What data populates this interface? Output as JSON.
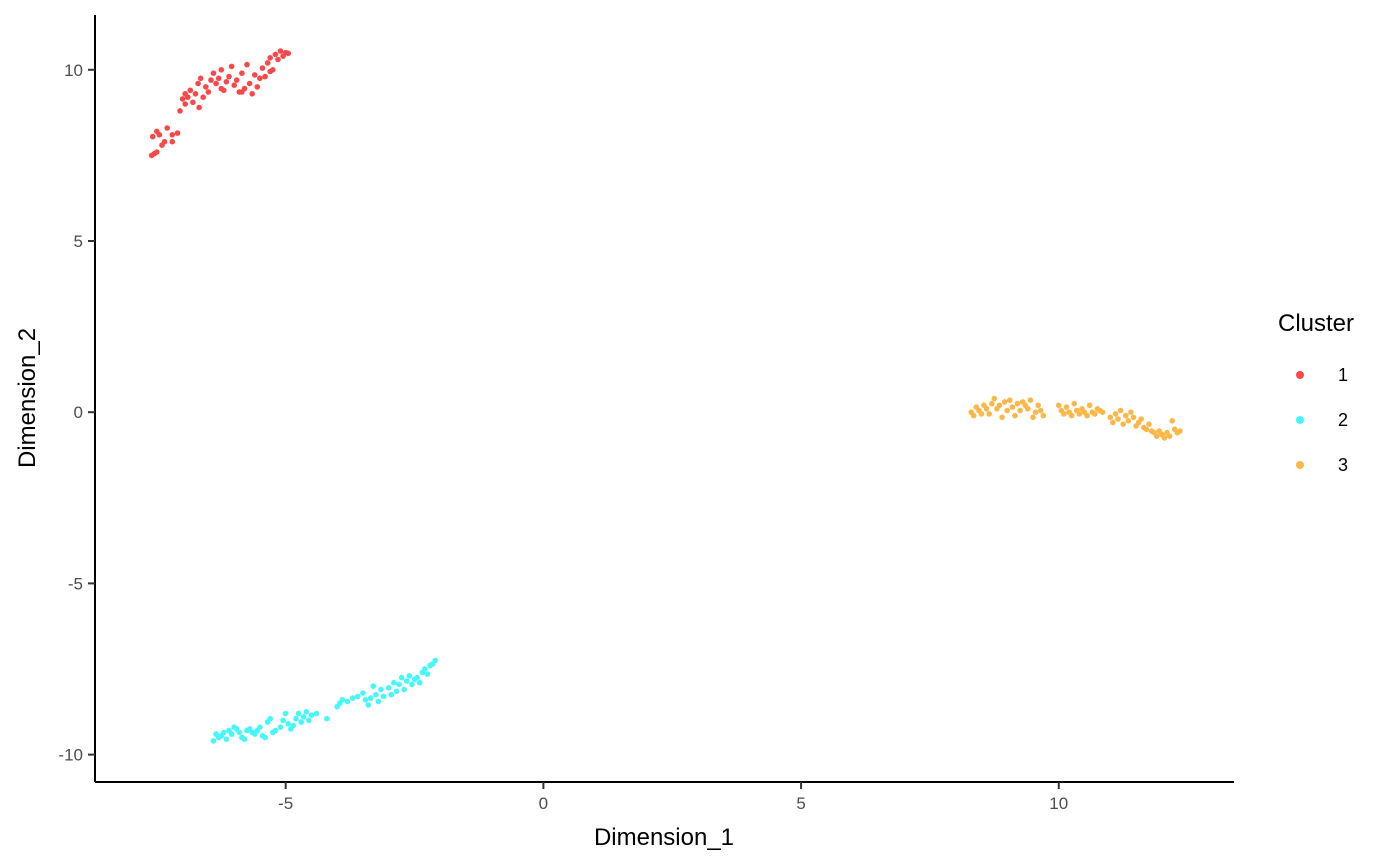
{
  "chart_data": {
    "type": "scatter",
    "xlabel": "Dimension_1",
    "ylabel": "Dimension_2",
    "xlim": [
      -8.7,
      13.4
    ],
    "ylim": [
      -10.8,
      11.6
    ],
    "x_ticks": [
      -5,
      0,
      5,
      10
    ],
    "y_ticks": [
      -10,
      -5,
      0,
      5,
      10
    ],
    "x_tick_labels": [
      "-5",
      "0",
      "5",
      "10"
    ],
    "y_tick_labels": [
      "-10",
      "-5",
      "0",
      "5",
      "10"
    ],
    "grid": false,
    "legend": {
      "title": "Cluster",
      "placement": "right"
    },
    "series": [
      {
        "name": "1",
        "color": "#F8484A",
        "points": [
          [
            -7.6,
            7.5
          ],
          [
            -7.55,
            7.55
          ],
          [
            -7.5,
            7.6
          ],
          [
            -7.58,
            8.05
          ],
          [
            -7.5,
            8.2
          ],
          [
            -7.45,
            8.1
          ],
          [
            -7.4,
            7.8
          ],
          [
            -7.35,
            7.9
          ],
          [
            -7.3,
            8.3
          ],
          [
            -7.2,
            8.1
          ],
          [
            -7.1,
            8.15
          ],
          [
            -7.05,
            8.8
          ],
          [
            -7.0,
            9.15
          ],
          [
            -6.95,
            9.0
          ],
          [
            -6.9,
            9.2
          ],
          [
            -6.85,
            9.4
          ],
          [
            -6.8,
            9.05
          ],
          [
            -6.75,
            9.3
          ],
          [
            -6.7,
            9.6
          ],
          [
            -6.68,
            8.9
          ],
          [
            -6.65,
            9.75
          ],
          [
            -6.6,
            9.2
          ],
          [
            -6.55,
            9.5
          ],
          [
            -6.5,
            9.35
          ],
          [
            -6.45,
            9.7
          ],
          [
            -6.4,
            9.9
          ],
          [
            -6.35,
            9.6
          ],
          [
            -6.3,
            9.75
          ],
          [
            -6.25,
            10.0
          ],
          [
            -6.2,
            9.4
          ],
          [
            -6.15,
            9.65
          ],
          [
            -6.1,
            9.8
          ],
          [
            -6.05,
            10.1
          ],
          [
            -6.0,
            9.55
          ],
          [
            -5.95,
            9.7
          ],
          [
            -5.9,
            9.35
          ],
          [
            -5.85,
            9.9
          ],
          [
            -5.8,
            9.45
          ],
          [
            -5.75,
            10.15
          ],
          [
            -5.7,
            9.6
          ],
          [
            -5.65,
            9.3
          ],
          [
            -5.6,
            9.85
          ],
          [
            -5.55,
            9.5
          ],
          [
            -5.5,
            9.75
          ],
          [
            -5.45,
            10.05
          ],
          [
            -5.4,
            9.8
          ],
          [
            -5.35,
            10.2
          ],
          [
            -5.3,
            10.35
          ],
          [
            -5.25,
            10.0
          ],
          [
            -5.2,
            10.45
          ],
          [
            -5.15,
            10.3
          ],
          [
            -5.1,
            10.55
          ],
          [
            -5.05,
            10.4
          ],
          [
            -5.0,
            10.5
          ],
          [
            -4.95,
            10.48
          ],
          [
            -5.85,
            9.35
          ],
          [
            -6.25,
            9.45
          ],
          [
            -6.95,
            9.3
          ],
          [
            -7.2,
            7.9
          ],
          [
            -5.3,
            9.95
          ]
        ]
      },
      {
        "name": "2",
        "color": "#45F7F8",
        "points": [
          [
            -6.4,
            -9.6
          ],
          [
            -6.35,
            -9.4
          ],
          [
            -6.3,
            -9.5
          ],
          [
            -6.25,
            -9.45
          ],
          [
            -6.2,
            -9.35
          ],
          [
            -6.15,
            -9.55
          ],
          [
            -6.1,
            -9.3
          ],
          [
            -6.05,
            -9.4
          ],
          [
            -6.0,
            -9.2
          ],
          [
            -5.95,
            -9.25
          ],
          [
            -5.9,
            -9.35
          ],
          [
            -5.85,
            -9.5
          ],
          [
            -5.8,
            -9.55
          ],
          [
            -5.75,
            -9.3
          ],
          [
            -5.7,
            -9.25
          ],
          [
            -5.65,
            -9.35
          ],
          [
            -5.6,
            -9.4
          ],
          [
            -5.55,
            -9.3
          ],
          [
            -5.5,
            -9.2
          ],
          [
            -5.45,
            -9.45
          ],
          [
            -5.4,
            -9.5
          ],
          [
            -5.35,
            -9.05
          ],
          [
            -5.3,
            -8.95
          ],
          [
            -5.25,
            -9.35
          ],
          [
            -5.2,
            -9.3
          ],
          [
            -5.1,
            -9.2
          ],
          [
            -5.05,
            -9.0
          ],
          [
            -5.0,
            -8.8
          ],
          [
            -4.95,
            -9.1
          ],
          [
            -4.9,
            -9.25
          ],
          [
            -4.85,
            -9.15
          ],
          [
            -4.8,
            -8.95
          ],
          [
            -4.75,
            -8.8
          ],
          [
            -4.7,
            -9.05
          ],
          [
            -4.65,
            -8.9
          ],
          [
            -4.6,
            -8.75
          ],
          [
            -4.55,
            -9.0
          ],
          [
            -4.5,
            -8.85
          ],
          [
            -4.4,
            -8.8
          ],
          [
            -4.2,
            -8.95
          ],
          [
            -4.0,
            -8.6
          ],
          [
            -3.95,
            -8.5
          ],
          [
            -3.9,
            -8.4
          ],
          [
            -3.8,
            -8.45
          ],
          [
            -3.7,
            -8.35
          ],
          [
            -3.6,
            -8.3
          ],
          [
            -3.5,
            -8.2
          ],
          [
            -3.45,
            -8.4
          ],
          [
            -3.4,
            -8.55
          ],
          [
            -3.35,
            -8.35
          ],
          [
            -3.3,
            -8.0
          ],
          [
            -3.25,
            -8.25
          ],
          [
            -3.2,
            -8.45
          ],
          [
            -3.15,
            -8.1
          ],
          [
            -3.1,
            -8.3
          ],
          [
            -3.0,
            -8.05
          ],
          [
            -2.95,
            -8.25
          ],
          [
            -2.9,
            -7.9
          ],
          [
            -2.85,
            -8.15
          ],
          [
            -2.8,
            -7.95
          ],
          [
            -2.75,
            -7.75
          ],
          [
            -2.7,
            -8.1
          ],
          [
            -2.65,
            -7.85
          ],
          [
            -2.6,
            -7.7
          ],
          [
            -2.55,
            -7.95
          ],
          [
            -2.5,
            -7.8
          ],
          [
            -2.45,
            -7.75
          ],
          [
            -2.4,
            -7.9
          ],
          [
            -2.35,
            -7.6
          ],
          [
            -2.3,
            -7.5
          ],
          [
            -2.25,
            -7.65
          ],
          [
            -2.2,
            -7.4
          ],
          [
            -2.15,
            -7.35
          ],
          [
            -2.1,
            -7.25
          ]
        ]
      },
      {
        "name": "3",
        "color": "#FBB748",
        "points": [
          [
            8.3,
            0.0
          ],
          [
            8.35,
            -0.1
          ],
          [
            8.4,
            0.15
          ],
          [
            8.45,
            0.05
          ],
          [
            8.5,
            -0.05
          ],
          [
            8.55,
            0.2
          ],
          [
            8.6,
            0.1
          ],
          [
            8.65,
            -0.05
          ],
          [
            8.7,
            0.25
          ],
          [
            8.75,
            0.4
          ],
          [
            8.8,
            0.1
          ],
          [
            8.85,
            0.2
          ],
          [
            8.9,
            -0.15
          ],
          [
            8.95,
            0.3
          ],
          [
            9.0,
            0.05
          ],
          [
            9.05,
            0.35
          ],
          [
            9.1,
            0.15
          ],
          [
            9.15,
            -0.1
          ],
          [
            9.2,
            0.25
          ],
          [
            9.25,
            0.05
          ],
          [
            9.3,
            0.3
          ],
          [
            9.35,
            0.2
          ],
          [
            9.4,
            0.1
          ],
          [
            9.45,
            0.35
          ],
          [
            9.5,
            -0.15
          ],
          [
            9.55,
            0.0
          ],
          [
            9.6,
            0.2
          ],
          [
            9.65,
            0.05
          ],
          [
            9.7,
            -0.1
          ],
          [
            10.0,
            0.2
          ],
          [
            10.05,
            0.05
          ],
          [
            10.1,
            -0.05
          ],
          [
            10.15,
            0.15
          ],
          [
            10.2,
            0.0
          ],
          [
            10.25,
            -0.1
          ],
          [
            10.3,
            0.25
          ],
          [
            10.35,
            0.05
          ],
          [
            10.4,
            -0.05
          ],
          [
            10.45,
            0.1
          ],
          [
            10.5,
            0.0
          ],
          [
            10.55,
            -0.1
          ],
          [
            10.6,
            0.2
          ],
          [
            10.65,
            0.0
          ],
          [
            10.7,
            -0.05
          ],
          [
            10.75,
            0.1
          ],
          [
            10.8,
            0.05
          ],
          [
            10.85,
            0.0
          ],
          [
            11.0,
            -0.15
          ],
          [
            11.05,
            -0.3
          ],
          [
            11.1,
            -0.05
          ],
          [
            11.15,
            -0.2
          ],
          [
            11.2,
            0.05
          ],
          [
            11.25,
            -0.35
          ],
          [
            11.3,
            -0.1
          ],
          [
            11.35,
            -0.25
          ],
          [
            11.4,
            0.0
          ],
          [
            11.45,
            -0.15
          ],
          [
            11.5,
            -0.4
          ],
          [
            11.55,
            -0.3
          ],
          [
            11.6,
            -0.2
          ],
          [
            11.65,
            -0.45
          ],
          [
            11.7,
            -0.5
          ],
          [
            11.75,
            -0.35
          ],
          [
            11.8,
            -0.55
          ],
          [
            11.85,
            -0.6
          ],
          [
            11.9,
            -0.7
          ],
          [
            11.95,
            -0.55
          ],
          [
            12.0,
            -0.65
          ],
          [
            12.05,
            -0.75
          ],
          [
            12.1,
            -0.6
          ],
          [
            12.15,
            -0.7
          ],
          [
            12.2,
            -0.25
          ],
          [
            12.25,
            -0.5
          ],
          [
            12.3,
            -0.6
          ],
          [
            12.35,
            -0.55
          ]
        ]
      }
    ]
  }
}
